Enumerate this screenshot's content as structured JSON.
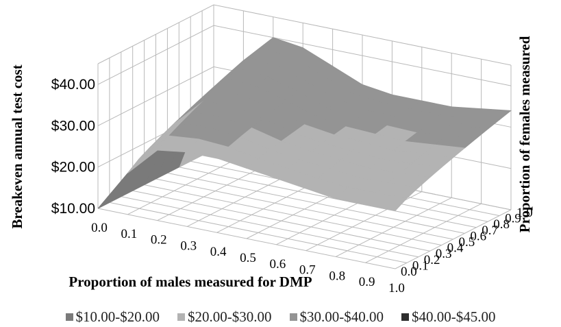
{
  "chart_data": {
    "type": "surface",
    "title": "",
    "zlabel": "Breakeven annual test cost",
    "xlabel": "Proportion of males measured for DMP",
    "ylabel": "Proportion of females measured",
    "x": [
      0.0,
      0.1,
      0.2,
      0.3,
      0.4,
      0.5,
      0.6,
      0.7,
      0.8,
      0.9,
      1.0
    ],
    "x_tick_labels": [
      "0.0",
      "0.1",
      "0.2",
      "0.3",
      "0.4",
      "0.5",
      "0.6",
      "0.7",
      "0.8",
      "0.9",
      "1.0"
    ],
    "y": [
      0.0,
      0.1,
      0.2,
      0.3,
      0.4,
      0.5,
      0.6,
      0.7,
      0.8,
      0.9,
      1.0
    ],
    "y_tick_labels": [
      "0.0",
      "0.1",
      "0.2",
      "0.3",
      "0.4",
      "0.5",
      "0.6",
      "0.7",
      "0.8",
      "0.9",
      "1.0"
    ],
    "z_tick_labels": [
      "$10.00",
      "$20.00",
      "$30.00",
      "$40.00"
    ],
    "zlim": [
      10,
      45
    ],
    "z_ticks": [
      10,
      20,
      30,
      40
    ],
    "z_back_row": [
      10,
      33,
      40,
      39,
      36,
      33,
      32,
      32,
      32,
      33,
      34
    ],
    "z_front_row": [
      10,
      20,
      27,
      28,
      28,
      27,
      26,
      25,
      24,
      24,
      24
    ],
    "bands": [
      {
        "label": "$10.00-$20.00",
        "min": 10,
        "max": 20,
        "color": "#7a7a7a"
      },
      {
        "label": "$20.00-$30.00",
        "min": 20,
        "max": 30,
        "color": "#b3b3b3"
      },
      {
        "label": "$30.00-$40.00",
        "min": 30,
        "max": 40,
        "color": "#949494"
      },
      {
        "label": "$40.00-$45.00",
        "min": 40,
        "max": 45,
        "color": "#2e2e2e"
      }
    ],
    "legend_position": "bottom",
    "grid": true
  }
}
